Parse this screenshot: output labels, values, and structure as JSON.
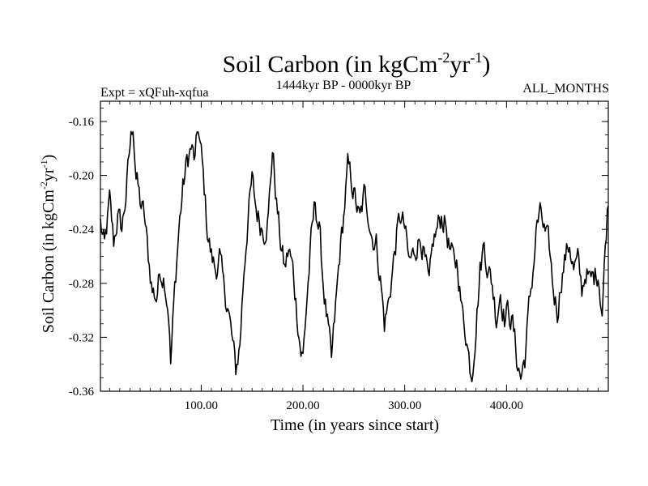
{
  "chart_data": {
    "type": "line",
    "title": {
      "main": "Soil Carbon (in kgCm",
      "sup1": "-2",
      "mid": "yr",
      "sup2": "-1",
      "end": ")"
    },
    "subtitle_left": "Expt = xQFuh-xqfua",
    "subtitle_center": "1444kyr BP - 0000kyr BP",
    "subtitle_right": "ALL_MONTHS",
    "xlabel": "Time (in years since start)",
    "ylabel": {
      "main": "Soil Carbon (in kgCm",
      "sup1": "-2",
      "mid": "yr",
      "sup2": "-1",
      "end": ")"
    },
    "xlim": [
      1,
      500
    ],
    "ylim": [
      -0.36,
      -0.145
    ],
    "x_ticks": [
      {
        "value": 100,
        "label": "100.00"
      },
      {
        "value": 200,
        "label": "200.00"
      },
      {
        "value": 300,
        "label": "300.00"
      },
      {
        "value": 400,
        "label": "400.00"
      }
    ],
    "y_ticks": [
      {
        "value": -0.16,
        "label": "-0.16"
      },
      {
        "value": -0.2,
        "label": "-0.20"
      },
      {
        "value": -0.24,
        "label": "-0.24"
      },
      {
        "value": -0.28,
        "label": "-0.28"
      },
      {
        "value": -0.32,
        "label": "-0.32"
      },
      {
        "value": -0.36,
        "label": "-0.36"
      }
    ],
    "grid": false,
    "series": [
      {
        "name": "Soil Carbon",
        "anchors": [
          [
            1,
            -0.235
          ],
          [
            5,
            -0.255
          ],
          [
            10,
            -0.22
          ],
          [
            14,
            -0.25
          ],
          [
            18,
            -0.23
          ],
          [
            22,
            -0.24
          ],
          [
            26,
            -0.215
          ],
          [
            30,
            -0.18
          ],
          [
            33,
            -0.16
          ],
          [
            36,
            -0.2
          ],
          [
            40,
            -0.22
          ],
          [
            44,
            -0.23
          ],
          [
            48,
            -0.26
          ],
          [
            52,
            -0.285
          ],
          [
            56,
            -0.29
          ],
          [
            60,
            -0.27
          ],
          [
            64,
            -0.275
          ],
          [
            68,
            -0.3
          ],
          [
            70,
            -0.34
          ],
          [
            74,
            -0.285
          ],
          [
            78,
            -0.24
          ],
          [
            82,
            -0.21
          ],
          [
            86,
            -0.19
          ],
          [
            90,
            -0.18
          ],
          [
            94,
            -0.19
          ],
          [
            97,
            -0.165
          ],
          [
            100,
            -0.185
          ],
          [
            103,
            -0.21
          ],
          [
            106,
            -0.24
          ],
          [
            110,
            -0.26
          ],
          [
            114,
            -0.27
          ],
          [
            118,
            -0.26
          ],
          [
            122,
            -0.285
          ],
          [
            126,
            -0.295
          ],
          [
            130,
            -0.32
          ],
          [
            134,
            -0.345
          ],
          [
            138,
            -0.325
          ],
          [
            142,
            -0.27
          ],
          [
            146,
            -0.23
          ],
          [
            150,
            -0.205
          ],
          [
            154,
            -0.225
          ],
          [
            158,
            -0.235
          ],
          [
            162,
            -0.24
          ],
          [
            166,
            -0.23
          ],
          [
            170,
            -0.18
          ],
          [
            174,
            -0.22
          ],
          [
            178,
            -0.25
          ],
          [
            182,
            -0.27
          ],
          [
            186,
            -0.255
          ],
          [
            190,
            -0.27
          ],
          [
            194,
            -0.3
          ],
          [
            198,
            -0.33
          ],
          [
            200,
            -0.335
          ],
          [
            204,
            -0.29
          ],
          [
            208,
            -0.25
          ],
          [
            212,
            -0.22
          ],
          [
            216,
            -0.24
          ],
          [
            220,
            -0.28
          ],
          [
            224,
            -0.31
          ],
          [
            228,
            -0.34
          ],
          [
            232,
            -0.3
          ],
          [
            236,
            -0.26
          ],
          [
            240,
            -0.23
          ],
          [
            244,
            -0.195
          ],
          [
            248,
            -0.205
          ],
          [
            252,
            -0.22
          ],
          [
            256,
            -0.235
          ],
          [
            260,
            -0.215
          ],
          [
            264,
            -0.225
          ],
          [
            268,
            -0.245
          ],
          [
            272,
            -0.25
          ],
          [
            276,
            -0.275
          ],
          [
            280,
            -0.31
          ],
          [
            284,
            -0.295
          ],
          [
            288,
            -0.27
          ],
          [
            292,
            -0.245
          ],
          [
            296,
            -0.23
          ],
          [
            300,
            -0.24
          ],
          [
            304,
            -0.265
          ],
          [
            308,
            -0.26
          ],
          [
            312,
            -0.25
          ],
          [
            316,
            -0.245
          ],
          [
            320,
            -0.265
          ],
          [
            324,
            -0.285
          ],
          [
            328,
            -0.25
          ],
          [
            332,
            -0.24
          ],
          [
            336,
            -0.23
          ],
          [
            340,
            -0.235
          ],
          [
            344,
            -0.255
          ],
          [
            348,
            -0.265
          ],
          [
            352,
            -0.265
          ],
          [
            356,
            -0.3
          ],
          [
            360,
            -0.315
          ],
          [
            364,
            -0.34
          ],
          [
            366,
            -0.345
          ],
          [
            370,
            -0.31
          ],
          [
            374,
            -0.27
          ],
          [
            378,
            -0.25
          ],
          [
            382,
            -0.27
          ],
          [
            386,
            -0.28
          ],
          [
            390,
            -0.305
          ],
          [
            394,
            -0.285
          ],
          [
            398,
            -0.305
          ],
          [
            402,
            -0.3
          ],
          [
            406,
            -0.31
          ],
          [
            410,
            -0.335
          ],
          [
            414,
            -0.35
          ],
          [
            418,
            -0.335
          ],
          [
            422,
            -0.3
          ],
          [
            426,
            -0.27
          ],
          [
            430,
            -0.235
          ],
          [
            434,
            -0.23
          ],
          [
            438,
            -0.245
          ],
          [
            442,
            -0.255
          ],
          [
            446,
            -0.285
          ],
          [
            450,
            -0.3
          ],
          [
            454,
            -0.275
          ],
          [
            458,
            -0.26
          ],
          [
            462,
            -0.25
          ],
          [
            466,
            -0.27
          ],
          [
            470,
            -0.265
          ],
          [
            474,
            -0.285
          ],
          [
            478,
            -0.27
          ],
          [
            482,
            -0.28
          ],
          [
            486,
            -0.275
          ],
          [
            490,
            -0.27
          ],
          [
            494,
            -0.3
          ],
          [
            498,
            -0.24
          ],
          [
            500,
            -0.215
          ]
        ],
        "noise_amplitude": 0.009,
        "color": "#000000"
      }
    ]
  }
}
